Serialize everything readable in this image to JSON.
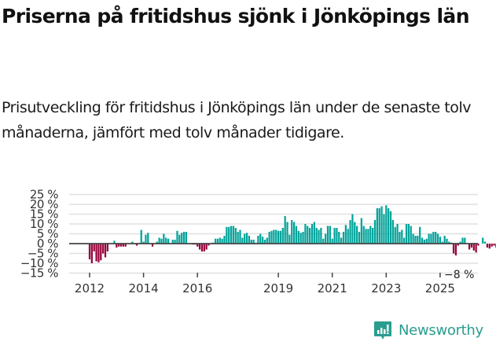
{
  "header": {
    "title": "Priserna på fritidshus sjönk i Jönköpings län",
    "subtitle": "Prisutveckling för fritidshus i Jönköpings län under de senaste tolv månaderna, jämfört med tolv månader tidigare."
  },
  "branding": {
    "logo_text": "Newsworthy",
    "logo_icon": "bar-chart-speech-bubble-icon",
    "color": "#2a9d8f"
  },
  "colors": {
    "positive": "#00a39a",
    "negative": "#96003a",
    "zero_line": "#444444",
    "grid": "#e0e0e0"
  },
  "chart_data": {
    "type": "bar",
    "title": "Priserna på fritidshus sjönk i Jönköpings län",
    "subtitle": "Prisutveckling för fritidshus i Jönköpings län under de senaste tolv månaderna, jämfört med tolv månader tidigare.",
    "xlabel": "",
    "ylabel": "",
    "ylim": [
      -15,
      25
    ],
    "yticks": [
      25,
      20,
      15,
      10,
      5,
      0,
      -5,
      -10,
      -15
    ],
    "ytick_labels": [
      "25 %",
      "20 %",
      "15 %",
      "10 %",
      "5 %",
      "0 %",
      "−5 %",
      "−10 %",
      "−15 %"
    ],
    "xtick_labels": [
      "2012",
      "2014",
      "2016",
      "2019",
      "2021",
      "2023",
      "2025"
    ],
    "xtick_years": [
      2012,
      2014,
      2016,
      2019,
      2021,
      2023,
      2025
    ],
    "grid": true,
    "legend": null,
    "start": "2012-01",
    "frequency": "monthly",
    "end_annotation": "−8 %",
    "values": [
      -8,
      -10,
      -4,
      -9,
      -9.5,
      -8.5,
      -5,
      -7,
      -4,
      0,
      0,
      1.5,
      -2,
      -1.5,
      -1.5,
      -1.5,
      -1.5,
      0,
      0,
      1,
      0,
      -1,
      0,
      7,
      1,
      4.5,
      5.5,
      0,
      -1.5,
      0,
      1,
      3,
      2.5,
      5,
      3,
      2.5,
      0,
      2,
      2,
      6.5,
      4.5,
      5.5,
      6,
      6,
      0,
      0,
      -0.5,
      -0.5,
      -1.5,
      -3,
      -4,
      -4,
      -3,
      -1,
      0,
      0.5,
      2.5,
      2.5,
      3,
      2.5,
      4,
      8.5,
      8.5,
      9,
      9,
      8,
      6,
      7,
      3,
      5,
      5.5,
      4,
      2,
      2,
      0.5,
      4,
      5,
      3.5,
      2,
      3,
      6,
      6.5,
      7,
      7,
      6.5,
      6.5,
      8,
      14,
      11,
      4.5,
      12,
      11,
      9,
      6.5,
      5.5,
      6,
      10,
      9,
      8,
      10,
      11,
      8,
      7,
      8,
      2.5,
      5,
      9,
      9,
      2.5,
      8,
      8,
      6,
      3,
      6,
      9.5,
      7.5,
      12,
      15,
      11,
      9,
      6,
      13,
      9,
      7.5,
      7.5,
      9,
      8,
      12,
      18,
      18,
      19,
      15,
      19.5,
      18,
      16.5,
      12,
      8.5,
      10,
      6,
      7,
      3,
      10,
      10,
      9,
      5,
      4,
      4,
      8.5,
      3,
      2,
      2.5,
      5,
      5,
      6,
      6,
      5,
      3.5,
      1,
      4,
      2.5,
      1,
      0.5,
      -5,
      -6,
      -1,
      1,
      3,
      3,
      0,
      -3,
      -2,
      -3.5,
      -4.5,
      -1,
      0,
      3,
      1,
      -2,
      -2.5,
      -1.5,
      -1,
      -2,
      1,
      1,
      -2,
      -1,
      -3.5,
      -1.5,
      -10,
      -8
    ]
  }
}
